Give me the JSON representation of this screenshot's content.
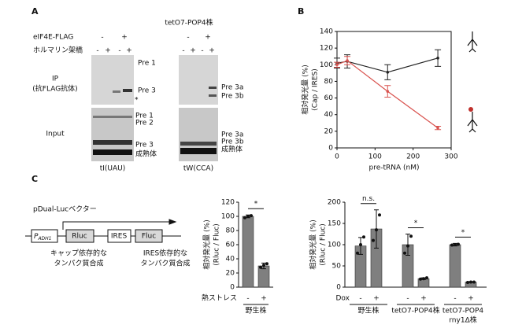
{
  "panel_a": {
    "label": "A",
    "strain": "tetO7-POP4株",
    "row1_label": "eIF4E-FLAG",
    "row1_signs": [
      "-",
      "+",
      "-",
      "+"
    ],
    "row2_label": "ホルマリン架橋",
    "row2_signs": [
      "-",
      "+",
      "-",
      "+",
      "-",
      "+",
      "-",
      "+"
    ],
    "ip_label": [
      "IP",
      "(抗FLAG抗体)"
    ],
    "input_label": "Input",
    "left_ip_bands": [
      "Pre 1",
      "Pre 3",
      "*"
    ],
    "left_input_bands": [
      "Pre 1",
      "Pre 2",
      "Pre 3",
      "成熟体"
    ],
    "right_ip_bands": [
      "Pre 3a",
      "Pre 3b"
    ],
    "right_input_bands": [
      "Pre 3a",
      "Pre 3b",
      "成熟体"
    ],
    "left_gel": "tI(UAU)",
    "right_gel": "tW(CCA)"
  },
  "panel_c": {
    "label": "C",
    "vector": "pDual-Lucベクター",
    "promoter": {
      "main": "P",
      "sub": "ADH1"
    },
    "boxes": [
      "Rluc",
      "IRES",
      "Fluc"
    ],
    "caption_cap": [
      "キャップ依存的な",
      "タンパク質合成"
    ],
    "caption_ires": [
      "IRES依存的な",
      "タンパク質合成"
    ]
  },
  "chart_data": [
    {
      "type": "line",
      "panel": "B",
      "ylabel": [
        "相対発光量 (%)",
        "(Cap / IRES)"
      ],
      "xlabel": "pre-tRNA (nM)",
      "x": [
        0,
        27,
        133,
        265
      ],
      "series": [
        {
          "color": "#222222",
          "values": [
            102,
            104,
            91,
            108
          ],
          "errors": [
            6,
            8,
            9,
            10
          ]
        },
        {
          "color": "#d9534f",
          "values": [
            100,
            105,
            68,
            24
          ],
          "errors": [
            3,
            5,
            7,
            2
          ]
        }
      ],
      "xlim": [
        0,
        300
      ],
      "xticks": [
        0,
        100,
        200,
        300
      ],
      "ylim": [
        0,
        140
      ],
      "yticks": [
        0,
        20,
        40,
        60,
        80,
        100,
        120,
        140
      ]
    },
    {
      "type": "bar",
      "ylabel": [
        "相対発光量 (%)",
        "(Rluc / Fluc)"
      ],
      "categories": [
        "-",
        "+"
      ],
      "values": [
        100,
        30
      ],
      "errors": [
        2,
        4
      ],
      "points": [
        [
          98,
          100,
          101
        ],
        [
          28,
          31,
          33
        ]
      ],
      "color": "#7f7f7f",
      "row_label": "熱ストレス",
      "groups": [
        [
          "野生株"
        ]
      ],
      "significance": [
        "*"
      ],
      "ylim": [
        0,
        120
      ],
      "yticks": [
        0,
        20,
        40,
        60,
        80,
        100,
        120
      ]
    },
    {
      "type": "bar",
      "ylabel": [
        "相対発光量 (%)",
        "(Rluc / Fluc)"
      ],
      "categories": [
        "-",
        "+",
        "-",
        "+",
        "-",
        "+"
      ],
      "values": [
        97,
        137,
        100,
        20,
        100,
        12
      ],
      "errors": [
        20,
        45,
        25,
        2,
        3,
        1
      ],
      "points": [
        [
          80,
          100,
          118
        ],
        [
          110,
          135,
          170
        ],
        [
          80,
          97,
          120
        ],
        [
          19,
          20,
          22
        ],
        [
          99,
          100,
          101
        ],
        [
          11,
          12,
          12
        ]
      ],
      "color": "#7f7f7f",
      "row_label": "Dox",
      "groups": [
        [
          "野生株"
        ],
        [
          "tetO7-POP4株"
        ],
        [
          "tetO7-POP4",
          "rny1Δ株"
        ]
      ],
      "significance": [
        "n.s.",
        "*",
        "*"
      ],
      "ylim": [
        0,
        200
      ],
      "yticks": [
        0,
        50,
        100,
        150,
        200
      ]
    }
  ]
}
